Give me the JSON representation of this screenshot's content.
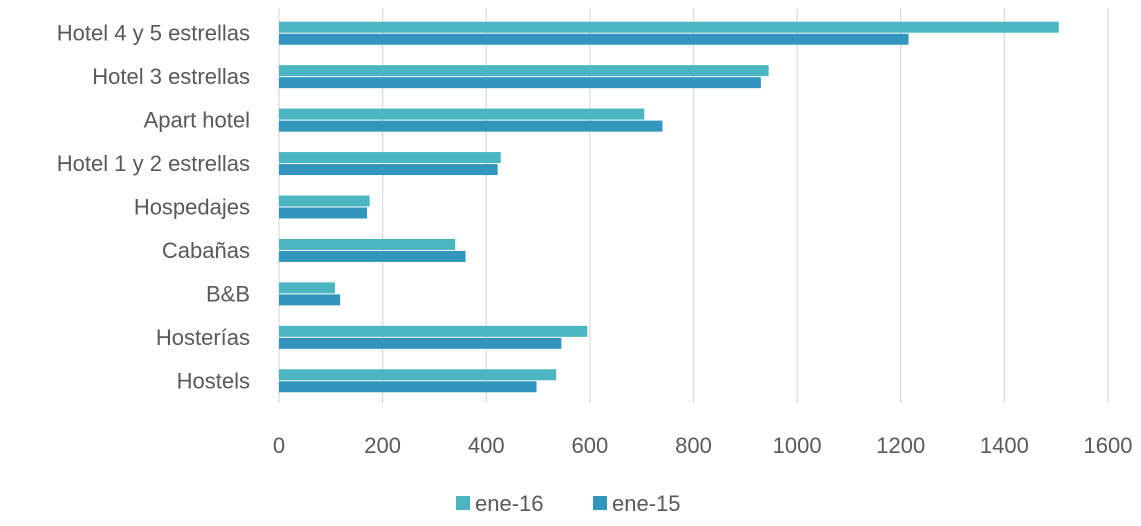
{
  "chart_data": {
    "type": "bar",
    "orientation": "horizontal",
    "categories": [
      "Hotel 4 y 5 estrellas",
      "Hotel 3 estrellas",
      "Apart hotel",
      "Hotel 1 y 2 estrellas",
      "Hospedajes",
      "Cabañas",
      "B&B",
      "Hosterías",
      "Hostels"
    ],
    "series": [
      {
        "name": "ene-16",
        "color": "#4BB5C1",
        "values": [
          1505,
          945,
          705,
          428,
          175,
          340,
          108,
          595,
          535
        ]
      },
      {
        "name": "ene-15",
        "color": "#3195BE",
        "values": [
          1215,
          930,
          740,
          422,
          170,
          360,
          118,
          545,
          497
        ]
      }
    ],
    "xlim": [
      0,
      1600
    ],
    "xticks": [
      0,
      200,
      400,
      600,
      800,
      1000,
      1200,
      1400,
      1600
    ],
    "title": "",
    "xlabel": "",
    "ylabel": "",
    "grid": "vertical",
    "legend": "bottom-center"
  }
}
